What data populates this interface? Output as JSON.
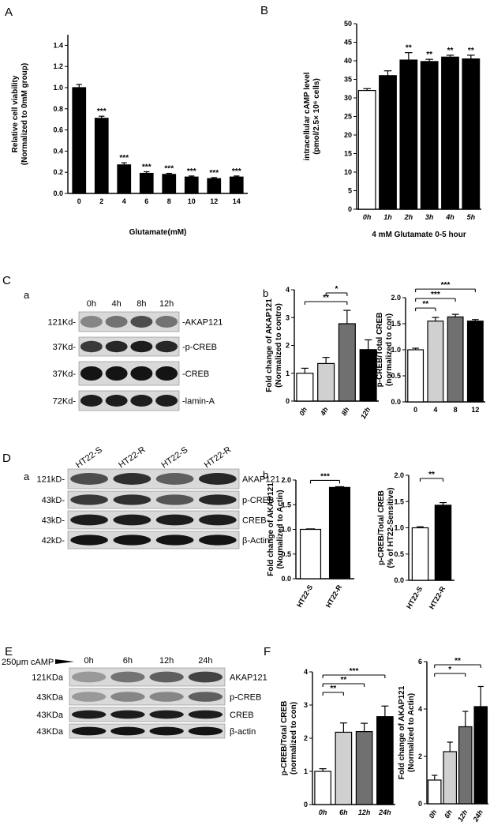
{
  "panels": {
    "A": "A",
    "B": "B",
    "C": "C",
    "Ca": "a",
    "Cb": "b",
    "D": "D",
    "Da": "a",
    "Db": "b",
    "E": "E",
    "F": "F"
  },
  "chart_data": [
    {
      "id": "A",
      "type": "bar",
      "categories": [
        "0",
        "2",
        "4",
        "6",
        "8",
        "10",
        "12",
        "14"
      ],
      "values": [
        1.0,
        0.71,
        0.27,
        0.19,
        0.18,
        0.155,
        0.14,
        0.155
      ],
      "errors": [
        0.03,
        0.02,
        0.02,
        0.015,
        0.01,
        0.01,
        0.01,
        0.01
      ],
      "significance": [
        "",
        "***",
        "***",
        "***",
        "***",
        "***",
        "***",
        "***"
      ],
      "fills": [
        "#000000",
        "#000000",
        "#000000",
        "#000000",
        "#000000",
        "#000000",
        "#000000",
        "#000000"
      ],
      "ylim": [
        0,
        1.5
      ],
      "yticks": [
        "0.0",
        "0.2",
        "0.4",
        "0.6",
        "0.8",
        "1.0",
        "1.2",
        "1.4"
      ],
      "ytick_values": [
        0,
        0.2,
        0.4,
        0.6,
        0.8,
        1.0,
        1.2,
        1.4
      ],
      "ylabel": [
        "Relative cell viability",
        "(Normalized to 0mM group)"
      ],
      "xlabel": "Glutamate(mM)",
      "xtick_italic": false,
      "xtick_rotate": false
    },
    {
      "id": "B",
      "type": "bar",
      "categories": [
        "0h",
        "1h",
        "2h",
        "3h",
        "4h",
        "5h"
      ],
      "values": [
        32,
        36,
        40.2,
        39.8,
        41,
        40.5
      ],
      "errors": [
        0.5,
        1.3,
        2.0,
        0.6,
        0.5,
        1.0
      ],
      "significance": [
        "",
        "",
        "**",
        "**",
        "**",
        "**"
      ],
      "fills": [
        "#ffffff",
        "#000000",
        "#000000",
        "#000000",
        "#000000",
        "#000000"
      ],
      "ylim": [
        0,
        50
      ],
      "yticks": [
        "0",
        "5",
        "10",
        "15",
        "20",
        "25",
        "30",
        "35",
        "40",
        "45",
        "50"
      ],
      "ytick_values": [
        0,
        5,
        10,
        15,
        20,
        25,
        30,
        35,
        40,
        45,
        50
      ],
      "ylabel": [
        "intracellular cAMP level",
        "(pmol/2.5× 10⁶ cells)"
      ],
      "xlabel": "4 mM Glutamate 0-5 hour",
      "xtick_italic": true,
      "xtick_rotate": false
    },
    {
      "id": "Cb1",
      "type": "bar",
      "categories": [
        "0h",
        "4h",
        "8h",
        "12h"
      ],
      "values": [
        1.0,
        1.35,
        2.78,
        1.85
      ],
      "errors": [
        0.18,
        0.22,
        0.48,
        0.35
      ],
      "fills": [
        "#ffffff",
        "#d0d0d0",
        "#707070",
        "#000000"
      ],
      "brackets": [
        {
          "from": 0,
          "to": 2,
          "label": "**",
          "level": 0
        },
        {
          "from": 1,
          "to": 2,
          "label": "*",
          "level": 1
        }
      ],
      "ylim": [
        0,
        4
      ],
      "yticks": [
        "0",
        "1",
        "2",
        "3",
        "4"
      ],
      "ytick_values": [
        0,
        1,
        2,
        3,
        4
      ],
      "ylabel": [
        "Fold change of AKAP121",
        "(Normalized to contro)"
      ],
      "xlabel": "",
      "xtick_italic": true,
      "xtick_rotate": true
    },
    {
      "id": "Cb2",
      "type": "bar",
      "categories": [
        "0",
        "4",
        "8",
        "12"
      ],
      "values": [
        1.0,
        1.55,
        1.63,
        1.55
      ],
      "errors": [
        0.03,
        0.07,
        0.05,
        0.03
      ],
      "fills": [
        "#ffffff",
        "#d0d0d0",
        "#707070",
        "#000000"
      ],
      "brackets": [
        {
          "from": 0,
          "to": 1,
          "label": "**",
          "level": 0
        },
        {
          "from": 0,
          "to": 2,
          "label": "***",
          "level": 1
        },
        {
          "from": 0,
          "to": 3,
          "label": "***",
          "level": 2
        }
      ],
      "ylim": [
        0,
        2.0
      ],
      "yticks": [
        "0.0",
        "0.5",
        "1.0",
        "1.5",
        "2.0"
      ],
      "ytick_values": [
        0,
        0.5,
        1.0,
        1.5,
        2.0
      ],
      "ylabel": [
        "p-CREB/Total CREB",
        "(normalized to con)"
      ],
      "xlabel": "",
      "xtick_italic": false,
      "xtick_rotate": false
    },
    {
      "id": "Db1",
      "type": "bar",
      "categories": [
        "HT22-S",
        "HT22-R"
      ],
      "values": [
        1.0,
        1.85
      ],
      "errors": [
        0.01,
        0.015
      ],
      "fills": [
        "#ffffff",
        "#000000"
      ],
      "brackets": [
        {
          "from": 0,
          "to": 1,
          "label": "***",
          "level": 0
        }
      ],
      "ylim": [
        0,
        2.0
      ],
      "yticks": [
        "0.0",
        "0.5",
        "1.0",
        "1.5",
        "2.0"
      ],
      "ytick_values": [
        0,
        0.5,
        1.0,
        1.5,
        2.0
      ],
      "ylabel": [
        "Fold change of AKAP121",
        "(Normalized to Actin)"
      ],
      "xlabel": "",
      "xtick_italic": false,
      "xtick_rotate": true
    },
    {
      "id": "Db2",
      "type": "bar",
      "categories": [
        "HT22-S",
        "HT22-R"
      ],
      "values": [
        1.0,
        1.43
      ],
      "errors": [
        0.02,
        0.05
      ],
      "fills": [
        "#ffffff",
        "#000000"
      ],
      "brackets": [
        {
          "from": 0,
          "to": 1,
          "label": "**",
          "level": 0
        }
      ],
      "ylim": [
        0,
        2.0
      ],
      "yticks": [
        "0.0",
        "0.5",
        "1.0",
        "1.5",
        "2.0"
      ],
      "ytick_values": [
        0,
        0.5,
        1.0,
        1.5,
        2.0
      ],
      "ylabel": [
        "p-CREB/Total CREB",
        "(% of HT22-Sensitive)"
      ],
      "xlabel": "",
      "xtick_italic": false,
      "xtick_rotate": true
    },
    {
      "id": "F1",
      "type": "bar",
      "categories": [
        "0h",
        "6h",
        "12h",
        "24h"
      ],
      "values": [
        1.0,
        2.18,
        2.2,
        2.65
      ],
      "errors": [
        0.08,
        0.28,
        0.25,
        0.32
      ],
      "fills": [
        "#ffffff",
        "#d0d0d0",
        "#707070",
        "#000000"
      ],
      "brackets": [
        {
          "from": 0,
          "to": 1,
          "label": "**",
          "level": 0
        },
        {
          "from": 0,
          "to": 2,
          "label": "**",
          "level": 1
        },
        {
          "from": 0,
          "to": 3,
          "label": "***",
          "level": 2
        }
      ],
      "ylim": [
        0,
        4
      ],
      "yticks": [
        "0",
        "1",
        "2",
        "3",
        "4"
      ],
      "ytick_values": [
        0,
        1,
        2,
        3,
        4
      ],
      "ylabel": [
        "p-CREB/Total CREB",
        "(normalized to con)"
      ],
      "xlabel": "",
      "xtick_italic": true,
      "xtick_rotate": false
    },
    {
      "id": "F2",
      "type": "bar",
      "categories": [
        "0h",
        "6h",
        "12h",
        "24h"
      ],
      "values": [
        1.0,
        2.2,
        3.25,
        4.1
      ],
      "errors": [
        0.2,
        0.4,
        0.65,
        0.85
      ],
      "fills": [
        "#ffffff",
        "#d0d0d0",
        "#707070",
        "#000000"
      ],
      "brackets": [
        {
          "from": 0,
          "to": 2,
          "label": "*",
          "level": 0
        },
        {
          "from": 0,
          "to": 3,
          "label": "**",
          "level": 1
        }
      ],
      "ylim": [
        0,
        6
      ],
      "yticks": [
        "0",
        "2",
        "4",
        "6"
      ],
      "ytick_values": [
        0,
        2,
        4,
        6
      ],
      "ylabel": [
        "Fold change of AKAP121",
        "(Normalized to Actin)"
      ],
      "xlabel": "",
      "xtick_italic": true,
      "xtick_rotate": true
    }
  ],
  "blots": {
    "C": {
      "lanes": [
        "0h",
        "4h",
        "8h",
        "12h"
      ],
      "rows": [
        {
          "left": "121Kd-",
          "right": "-AKAP121",
          "intensity": [
            0.35,
            0.45,
            0.65,
            0.45
          ]
        },
        {
          "left": "37Kd-",
          "right": "-p-CREB",
          "intensity": [
            0.75,
            0.85,
            0.9,
            0.85
          ]
        },
        {
          "left": "37Kd-",
          "right": "-CREB",
          "intensity": [
            0.95,
            0.95,
            0.95,
            0.95
          ]
        },
        {
          "left": "72Kd-",
          "right": "-lamin-A",
          "intensity": [
            0.9,
            0.9,
            0.9,
            0.9
          ]
        }
      ]
    },
    "D": {
      "lanes": [
        "HT22-S",
        "HT22-R",
        "HT22-S",
        "HT22-R"
      ],
      "rows": [
        {
          "left": "121kD-",
          "right": "AKAP121",
          "intensity": [
            0.65,
            0.8,
            0.55,
            0.85
          ]
        },
        {
          "left": "43kD-",
          "right": "p-CREB",
          "intensity": [
            0.75,
            0.8,
            0.6,
            0.85
          ]
        },
        {
          "left": "43kD-",
          "right": "CREB",
          "intensity": [
            0.9,
            0.9,
            0.9,
            0.9
          ]
        },
        {
          "left": "42kD-",
          "right": "β-Actin",
          "intensity": [
            0.95,
            0.95,
            0.95,
            0.95
          ]
        }
      ]
    },
    "E": {
      "treatment": "250μm cAMP",
      "lanes": [
        "0h",
        "6h",
        "12h",
        "24h"
      ],
      "rows": [
        {
          "left": "121KDa",
          "right": "AKAP121",
          "intensity": [
            0.25,
            0.45,
            0.55,
            0.7
          ]
        },
        {
          "left": "43KDa",
          "right": "p-CREB",
          "intensity": [
            0.25,
            0.35,
            0.35,
            0.55
          ]
        },
        {
          "left": "43KDa",
          "right": "CREB",
          "intensity": [
            0.9,
            0.9,
            0.9,
            0.9
          ]
        },
        {
          "left": "43KDa",
          "right": "β-actin",
          "intensity": [
            0.95,
            0.95,
            0.95,
            0.95
          ]
        }
      ]
    }
  }
}
